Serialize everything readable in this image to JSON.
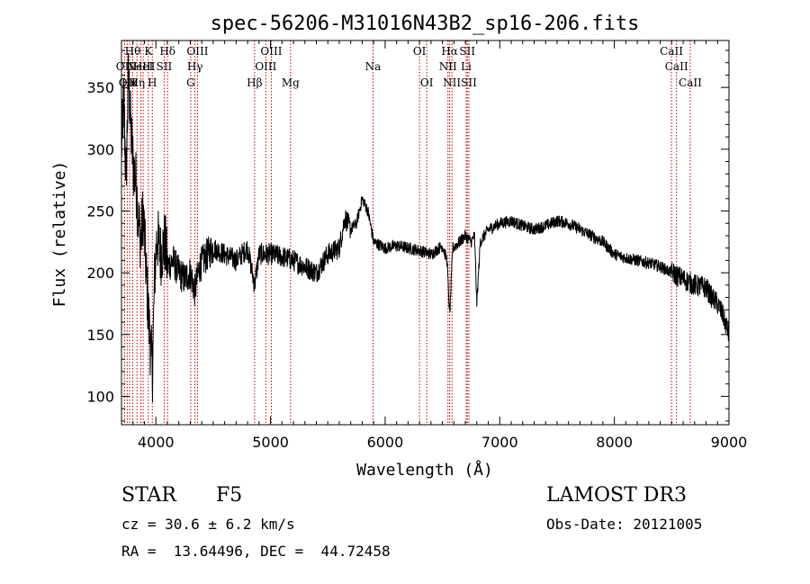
{
  "chart_data": {
    "type": "line",
    "title": "spec-56206-M31016N43B2_sp16-206.fits",
    "xlabel": "Wavelength (Å)",
    "ylabel": "Flux (relative)",
    "xlim": [
      3700,
      9000
    ],
    "ylim": [
      77,
      388
    ],
    "xticks": [
      4000,
      5000,
      6000,
      7000,
      8000,
      9000
    ],
    "yticks": [
      100,
      150,
      200,
      250,
      300,
      350
    ],
    "grid": false,
    "spectrum_anchors": [
      [
        3700,
        300
      ],
      [
        3720,
        340
      ],
      [
        3740,
        275
      ],
      [
        3760,
        360
      ],
      [
        3780,
        320
      ],
      [
        3800,
        290
      ],
      [
        3830,
        270
      ],
      [
        3850,
        240
      ],
      [
        3870,
        225
      ],
      [
        3890,
        250
      ],
      [
        3910,
        210
      ],
      [
        3930,
        175
      ],
      [
        3950,
        145
      ],
      [
        3970,
        120
      ],
      [
        3990,
        200
      ],
      [
        4010,
        230
      ],
      [
        4040,
        215
      ],
      [
        4080,
        225
      ],
      [
        4100,
        205
      ],
      [
        4150,
        210
      ],
      [
        4200,
        200
      ],
      [
        4250,
        195
      ],
      [
        4300,
        200
      ],
      [
        4340,
        185
      ],
      [
        4380,
        205
      ],
      [
        4450,
        215
      ],
      [
        4500,
        220
      ],
      [
        4600,
        215
      ],
      [
        4700,
        210
      ],
      [
        4800,
        220
      ],
      [
        4861,
        190
      ],
      [
        4900,
        215
      ],
      [
        5000,
        215
      ],
      [
        5100,
        213
      ],
      [
        5200,
        210
      ],
      [
        5300,
        205
      ],
      [
        5400,
        200
      ],
      [
        5500,
        215
      ],
      [
        5600,
        220
      ],
      [
        5650,
        245
      ],
      [
        5700,
        235
      ],
      [
        5750,
        240
      ],
      [
        5800,
        260
      ],
      [
        5850,
        250
      ],
      [
        5900,
        225
      ],
      [
        6000,
        220
      ],
      [
        6100,
        222
      ],
      [
        6200,
        220
      ],
      [
        6300,
        218
      ],
      [
        6400,
        215
      ],
      [
        6500,
        222
      ],
      [
        6540,
        210
      ],
      [
        6563,
        165
      ],
      [
        6590,
        220
      ],
      [
        6650,
        225
      ],
      [
        6700,
        230
      ],
      [
        6750,
        225
      ],
      [
        6780,
        230
      ],
      [
        6800,
        175
      ],
      [
        6830,
        225
      ],
      [
        6900,
        235
      ],
      [
        7000,
        240
      ],
      [
        7100,
        242
      ],
      [
        7200,
        238
      ],
      [
        7300,
        235
      ],
      [
        7400,
        238
      ],
      [
        7500,
        242
      ],
      [
        7600,
        240
      ],
      [
        7700,
        235
      ],
      [
        7800,
        230
      ],
      [
        7900,
        225
      ],
      [
        8000,
        215
      ],
      [
        8100,
        212
      ],
      [
        8200,
        210
      ],
      [
        8300,
        208
      ],
      [
        8400,
        205
      ],
      [
        8500,
        200
      ],
      [
        8600,
        195
      ],
      [
        8700,
        190
      ],
      [
        8800,
        188
      ],
      [
        8850,
        180
      ],
      [
        8900,
        175
      ],
      [
        8950,
        165
      ],
      [
        9000,
        150
      ]
    ],
    "lines": [
      {
        "wave": 3727,
        "label": "OII",
        "row": 2
      },
      {
        "wave": 3750,
        "label": "OII",
        "row": 3
      },
      {
        "wave": 3771,
        "label": "Hκ",
        "row": 3
      },
      {
        "wave": 3798,
        "label": "Hθ",
        "row": 1
      },
      {
        "wave": 3835,
        "label": "Hη",
        "row": 3
      },
      {
        "wave": 3869,
        "label": "NeIII",
        "row": 2
      },
      {
        "wave": 3889,
        "label": "HeI",
        "row": 2
      },
      {
        "wave": 3934,
        "label": "K",
        "row": 1
      },
      {
        "wave": 3969,
        "label": "H",
        "row": 3
      },
      {
        "wave": 4072,
        "label": "SII",
        "row": 2
      },
      {
        "wave": 4102,
        "label": "Hδ",
        "row": 1
      },
      {
        "wave": 4304,
        "label": "G",
        "row": 3
      },
      {
        "wave": 4341,
        "label": "Hγ",
        "row": 2
      },
      {
        "wave": 4363,
        "label": "OIII",
        "row": 1
      },
      {
        "wave": 4861,
        "label": "Hβ",
        "row": 3
      },
      {
        "wave": 4959,
        "label": "OIII",
        "row": 2
      },
      {
        "wave": 5007,
        "label": "OIII",
        "row": 1
      },
      {
        "wave": 5175,
        "label": "Mg",
        "row": 3
      },
      {
        "wave": 5894,
        "label": "Na",
        "row": 2
      },
      {
        "wave": 6300,
        "label": "OI",
        "row": 1
      },
      {
        "wave": 6363,
        "label": "OI",
        "row": 3
      },
      {
        "wave": 6548,
        "label": "NII",
        "row": 2
      },
      {
        "wave": 6563,
        "label": "Hα",
        "row": 1
      },
      {
        "wave": 6583,
        "label": "NII",
        "row": 3
      },
      {
        "wave": 6707,
        "label": "Li",
        "row": 2
      },
      {
        "wave": 6717,
        "label": "SII",
        "row": 1
      },
      {
        "wave": 6731,
        "label": "SII",
        "row": 3
      },
      {
        "wave": 8498,
        "label": "CaII",
        "row": 1
      },
      {
        "wave": 8542,
        "label": "CaII",
        "row": 2
      },
      {
        "wave": 8662,
        "label": "CaII",
        "row": 3
      }
    ]
  },
  "info": {
    "class_label": "STAR",
    "subclass": "F5",
    "survey": "LAMOST DR3",
    "redshift": "cz = 30.6 ± 6.2 km/s",
    "obs_date": "Obs-Date: 20121005",
    "coords": "RA =  13.64496, DEC =  44.72458"
  },
  "colors": {
    "line_marker": "#c00000",
    "spectrum": "#000000",
    "axis": "#000000"
  }
}
